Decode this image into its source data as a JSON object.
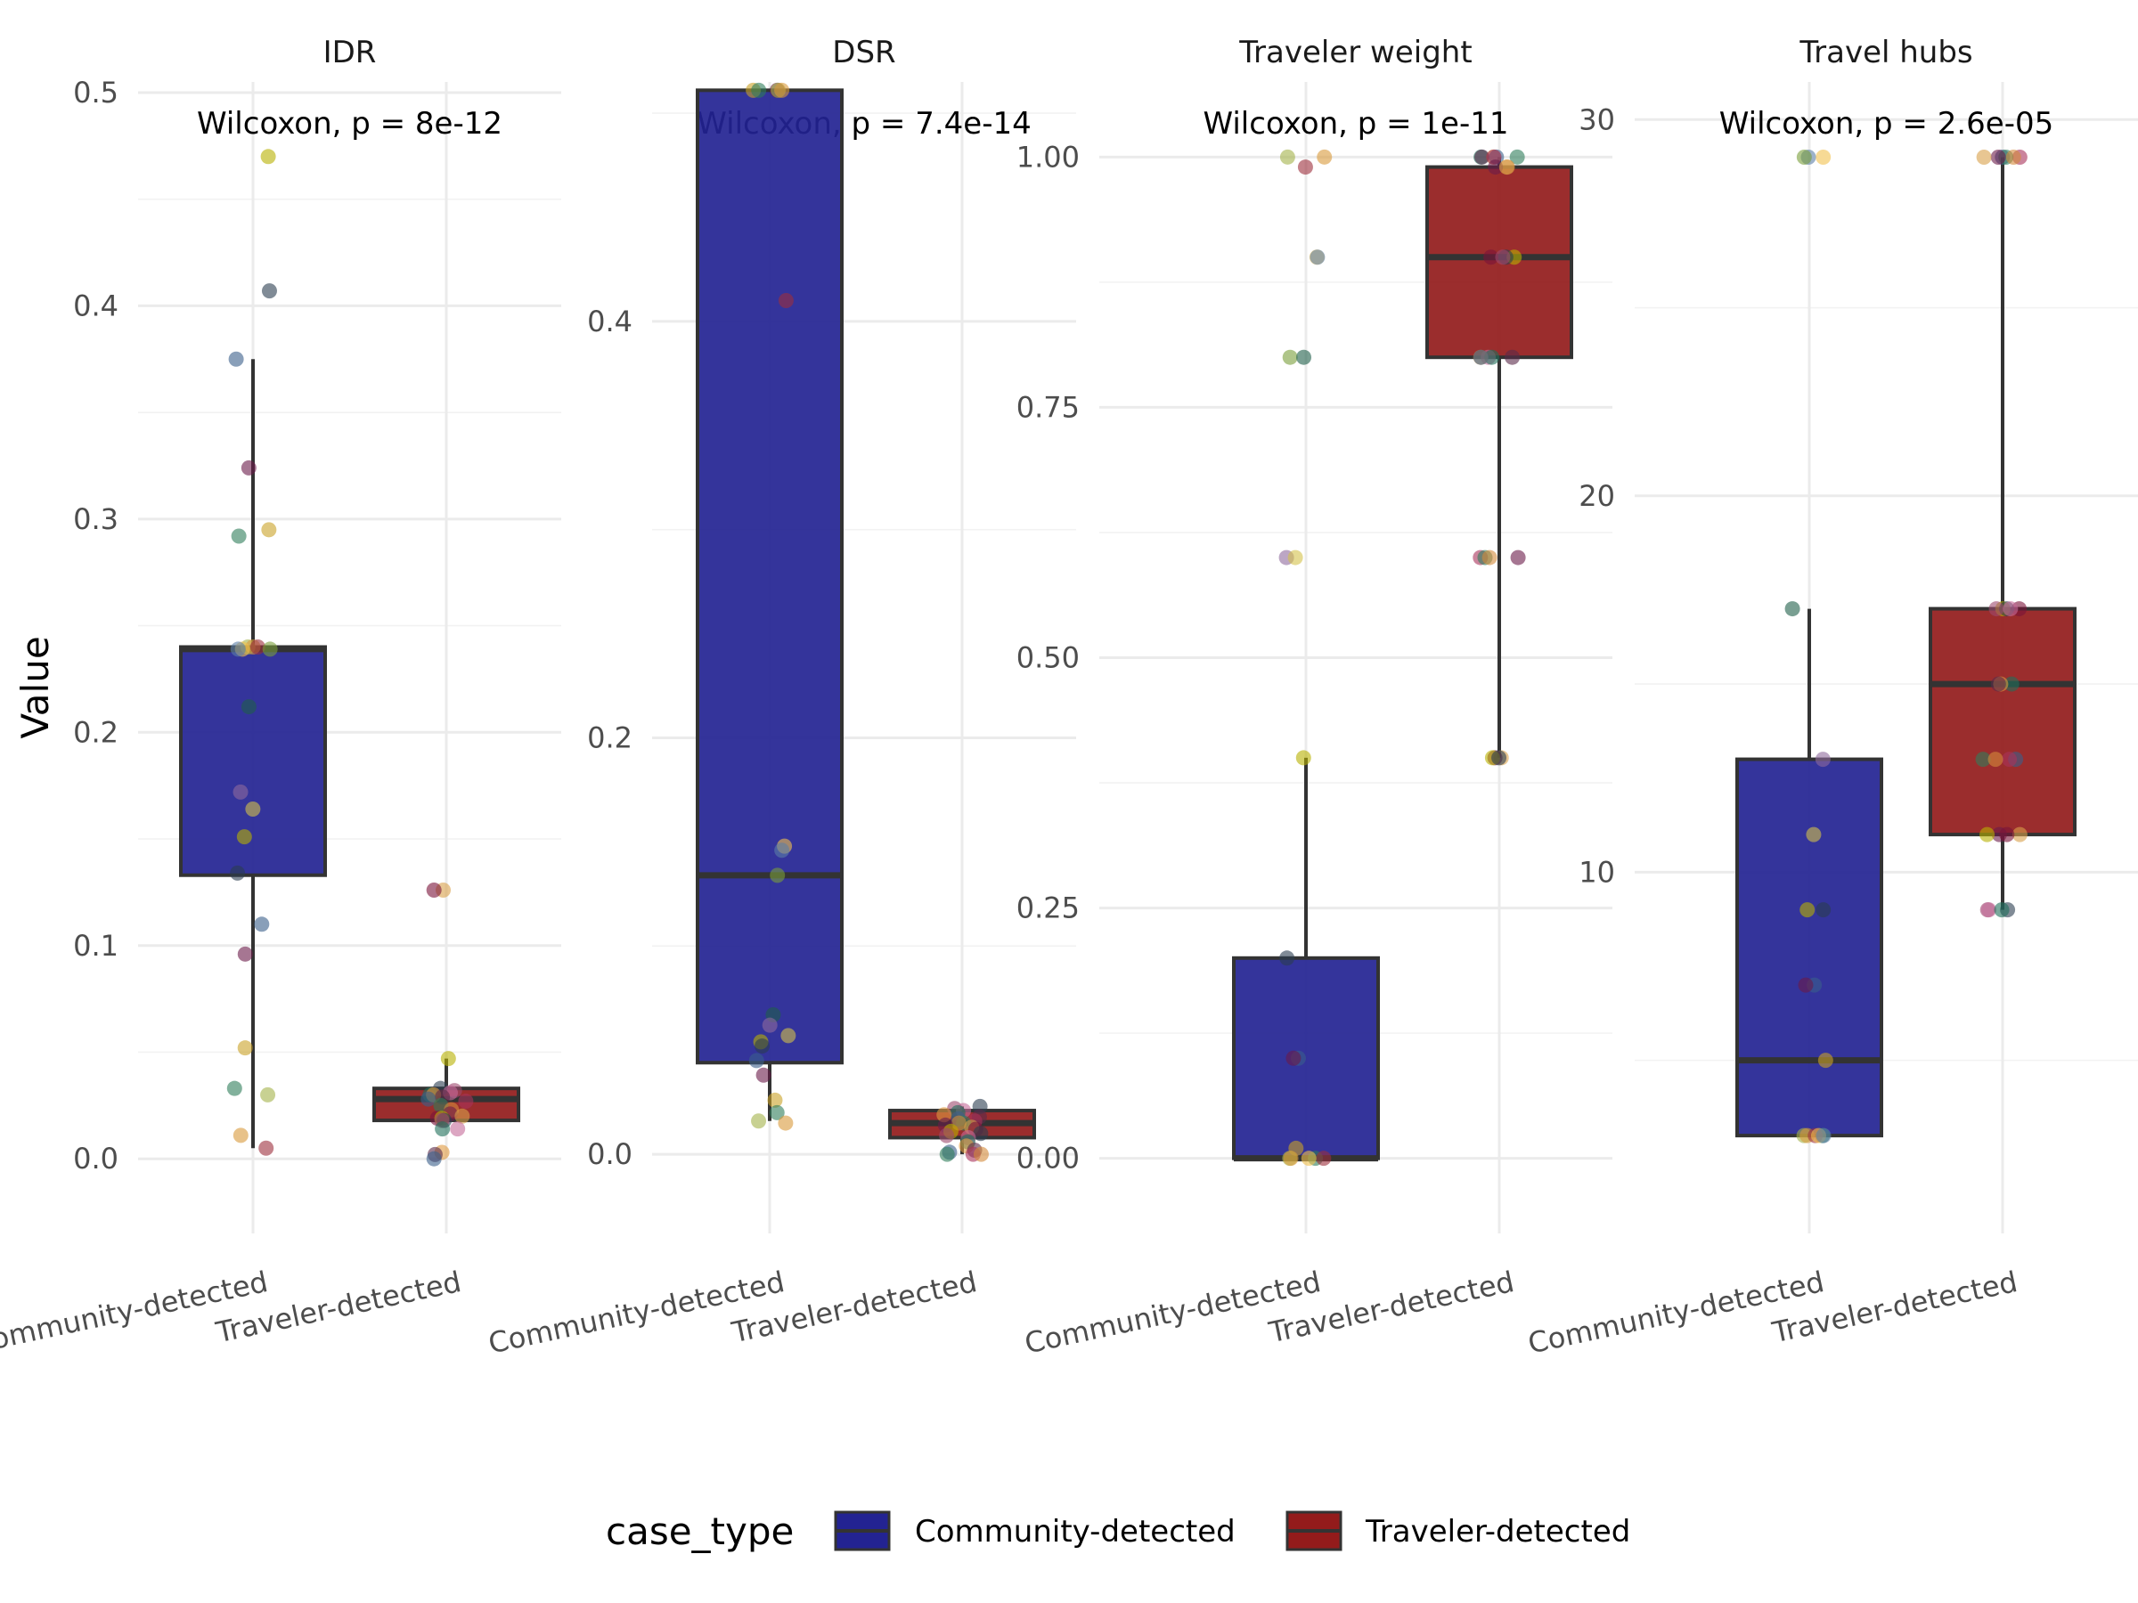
{
  "chart_data": {
    "type": "box",
    "ylabel": "Value",
    "legend": {
      "title": "case_type",
      "position": "bottom",
      "items": [
        {
          "label": "Community-detected",
          "color": "#232392"
        },
        {
          "label": "Traveler-detected",
          "color": "#931b1b"
        }
      ]
    },
    "colors": {
      "community": "#232392",
      "traveler": "#931b1b",
      "outline": "#333333"
    },
    "categories": [
      "Community-detected",
      "Traveler-detected"
    ],
    "panels": [
      {
        "title": "IDR",
        "annotation": "Wilcoxon, p = 8e-12",
        "ylim": [
          -0.035,
          0.505
        ],
        "yticks": [
          0.0,
          0.1,
          0.2,
          0.3,
          0.4,
          0.5
        ],
        "ytick_labels": [
          "0.0",
          "0.1",
          "0.2",
          "0.3",
          "0.4",
          "0.5"
        ],
        "boxes": [
          {
            "group": "Community-detected",
            "min": 0.005,
            "q1": 0.133,
            "median": 0.239,
            "q3": 0.24,
            "max": 0.375
          },
          {
            "group": "Traveler-detected",
            "min": 0.018,
            "q1": 0.018,
            "median": 0.028,
            "q3": 0.033,
            "max": 0.047
          }
        ],
        "points": [
          [
            0.47,
            0.407,
            0.375,
            0.324,
            0.295,
            0.292,
            0.24,
            0.24,
            0.24,
            0.239,
            0.239,
            0.239,
            0.212,
            0.172,
            0.164,
            0.151,
            0.134,
            0.11,
            0.096,
            0.052,
            0.033,
            0.03,
            0.011,
            0.005
          ],
          [
            0.126,
            0.126,
            0.047,
            0.033,
            0.032,
            0.031,
            0.03,
            0.03,
            0.029,
            0.028,
            0.027,
            0.025,
            0.023,
            0.021,
            0.02,
            0.019,
            0.019,
            0.018,
            0.018,
            0.014,
            0.014,
            0.003,
            0.002,
            0.0
          ]
        ]
      },
      {
        "title": "DSR",
        "annotation": "Wilcoxon, p = 7.4e-14",
        "ylim": [
          -0.038,
          0.515
        ],
        "yticks": [
          0.0,
          0.2,
          0.4
        ],
        "ytick_labels": [
          "0.0",
          "0.2",
          "0.4"
        ],
        "boxes": [
          {
            "group": "Community-detected",
            "min": 0.016,
            "q1": 0.044,
            "median": 0.134,
            "q3": 0.511,
            "max": 0.511
          },
          {
            "group": "Traveler-detected",
            "min": 0.0,
            "q1": 0.008,
            "median": 0.015,
            "q3": 0.021,
            "max": 0.023
          }
        ],
        "points": [
          [
            0.511,
            0.511,
            0.511,
            0.511,
            0.511,
            0.41,
            0.148,
            0.146,
            0.134,
            0.067,
            0.062,
            0.057,
            0.054,
            0.052,
            0.045,
            0.038,
            0.026,
            0.02,
            0.016,
            0.015
          ],
          [
            0.023,
            0.022,
            0.021,
            0.02,
            0.019,
            0.018,
            0.017,
            0.016,
            0.015,
            0.015,
            0.014,
            0.013,
            0.012,
            0.011,
            0.01,
            0.009,
            0.008,
            0.006,
            0.004,
            0.002,
            0.001,
            0.0,
            0.0,
            0.0
          ]
        ]
      },
      {
        "title": "Traveler weight",
        "annotation": "Wilcoxon, p = 1e-11",
        "ylim": [
          -0.075,
          1.075
        ],
        "yticks": [
          0.0,
          0.25,
          0.5,
          0.75,
          1.0
        ],
        "ytick_labels": [
          "0.00",
          "0.25",
          "0.50",
          "0.75",
          "1.00"
        ],
        "boxes": [
          {
            "group": "Community-detected",
            "min": 0.0,
            "q1": 0.0,
            "median": 0.0,
            "q3": 0.2,
            "max": 0.4
          },
          {
            "group": "Traveler-detected",
            "min": 0.4,
            "q1": 0.8,
            "median": 0.9,
            "q3": 0.99,
            "max": 1.0
          }
        ],
        "points": [
          [
            1.0,
            1.0,
            0.99,
            0.9,
            0.9,
            0.8,
            0.8,
            0.6,
            0.6,
            0.4,
            0.2,
            0.1,
            0.1,
            0.01,
            0.0,
            0.0,
            0.0,
            0.0,
            0.0
          ],
          [
            1.0,
            1.0,
            1.0,
            1.0,
            1.0,
            1.0,
            0.99,
            0.99,
            0.99,
            0.9,
            0.9,
            0.9,
            0.9,
            0.8,
            0.8,
            0.8,
            0.8,
            0.8,
            0.6,
            0.6,
            0.6,
            0.6,
            0.4,
            0.4,
            0.4,
            0.4
          ]
        ]
      },
      {
        "title": "Travel hubs",
        "annotation": "Wilcoxon, p = 2.6e-05",
        "ylim": [
          0.4,
          31.0
        ],
        "yticks": [
          10,
          20,
          30
        ],
        "ytick_labels": [
          "10",
          "20",
          "30"
        ],
        "boxes": [
          {
            "group": "Community-detected",
            "min": 3,
            "q1": 3,
            "median": 5,
            "q3": 13,
            "max": 17
          },
          {
            "group": "Traveler-detected",
            "min": 9,
            "q1": 11,
            "median": 15,
            "q3": 17,
            "max": 29
          }
        ],
        "points": [
          [
            29,
            29,
            29,
            17,
            13,
            11,
            9,
            9,
            7,
            7,
            5,
            3,
            3,
            3,
            3,
            3,
            3
          ],
          [
            29,
            29,
            29,
            29,
            29,
            29,
            17,
            17,
            17,
            17,
            17,
            15,
            15,
            15,
            13,
            13,
            13,
            13,
            11,
            11,
            11,
            11,
            9,
            9,
            9,
            9
          ]
        ]
      }
    ]
  }
}
